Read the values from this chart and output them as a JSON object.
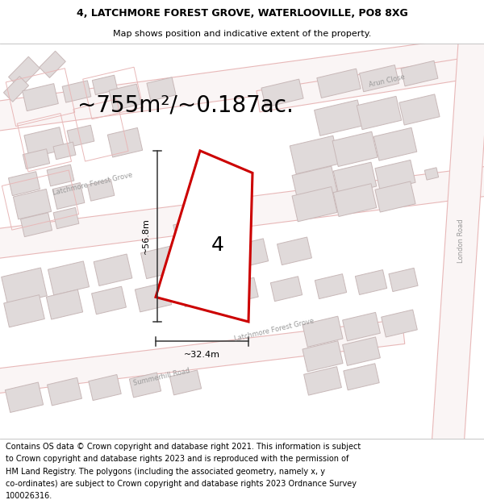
{
  "title_line1": "4, LATCHMORE FOREST GROVE, WATERLOOVILLE, PO8 8XG",
  "title_line2": "Map shows position and indicative extent of the property.",
  "area_label": "~755m²/~0.187ac.",
  "plot_number": "4",
  "dim_height": "~56.8m",
  "dim_width": "~32.4m",
  "footer_lines": [
    "Contains OS data © Crown copyright and database right 2021. This information is subject",
    "to Crown copyright and database rights 2023 and is reproduced with the permission of",
    "HM Land Registry. The polygons (including the associated geometry, namely x, y",
    "co-ordinates) are subject to Crown copyright and database rights 2023 Ordnance Survey",
    "100026316."
  ],
  "map_bg": "#f9f7f7",
  "road_outline_color": "#e8b8b8",
  "road_fill_color": "#faf5f5",
  "building_fill": "#e0dada",
  "building_edge": "#c8b8b8",
  "plot_outline_fill": "#fce8e8",
  "plot_fill": "#ffffff",
  "plot_stroke": "#cc0000",
  "dim_color": "#333333",
  "text_color": "#000000",
  "road_label_color": "#999999",
  "title_fontsize": 9,
  "subtitle_fontsize": 8,
  "area_fontsize": 20,
  "plot_num_fontsize": 18,
  "dim_fontsize": 8,
  "footer_fontsize": 7,
  "road_label_fontsize": 6
}
